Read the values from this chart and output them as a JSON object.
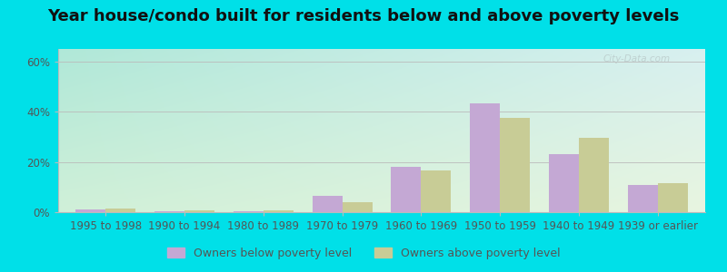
{
  "title": "Year house/condo built for residents below and above poverty levels",
  "categories": [
    "1995 to 1998",
    "1990 to 1994",
    "1980 to 1989",
    "1970 to 1979",
    "1960 to 1969",
    "1950 to 1959",
    "1940 to 1949",
    "1939 or earlier"
  ],
  "below_poverty": [
    1.0,
    0.5,
    0.5,
    6.5,
    18.0,
    43.5,
    23.0,
    11.0
  ],
  "above_poverty": [
    1.5,
    0.8,
    0.8,
    4.0,
    16.5,
    37.5,
    29.5,
    11.5
  ],
  "below_color": "#c4a8d4",
  "above_color": "#c8cc96",
  "bg_topleft": "#b0e8d8",
  "bg_bottomright": "#e8f5e0",
  "outer_bg": "#00e0e8",
  "ylabel_ticks": [
    0,
    20,
    40,
    60
  ],
  "ylim": [
    0,
    65
  ],
  "bar_width": 0.38,
  "legend_below": "Owners below poverty level",
  "legend_above": "Owners above poverty level",
  "title_fontsize": 13,
  "tick_fontsize": 8.5,
  "legend_fontsize": 9
}
